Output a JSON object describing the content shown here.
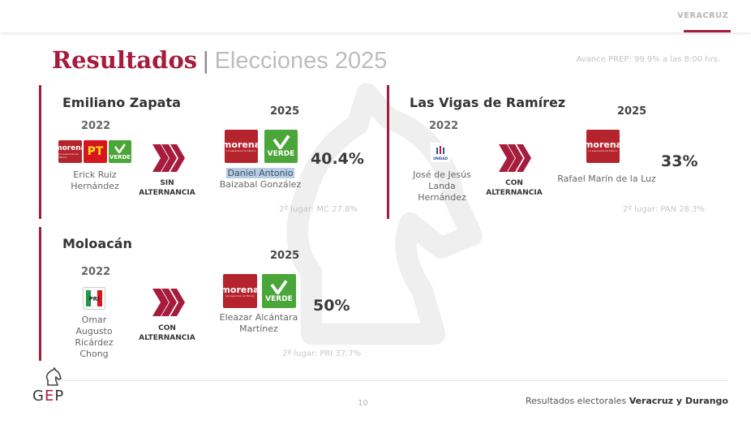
{
  "header": {
    "region": "VERACRUZ"
  },
  "title": {
    "main": "Resultados",
    "separator": "|",
    "sub": "Elecciones 2025"
  },
  "prep": "Avance PREP: 99.9% a las 8:00 hrs.",
  "cards": [
    {
      "municipality": "Emiliano Zapata",
      "year_prev": "2022",
      "prev_logos": [
        "morena",
        "PT",
        "VERDE"
      ],
      "prev_candidate": "Erick Ruiz Hernández",
      "alternation": "SIN ALTERNANCIA",
      "year_new": "2025",
      "new_logos": [
        "morena",
        "VERDE"
      ],
      "new_candidate_line1": "Daniel Antonio",
      "new_candidate_line2": "Baizabal González",
      "percent": "40.4%",
      "second_place": "2º lugar: MC 27.8%"
    },
    {
      "municipality": "Las Vigas de Ramírez",
      "year_prev": "2022",
      "prev_logos": [
        "UNIDAD"
      ],
      "prev_candidate": "José de Jesús Landa Hernández",
      "alternation": "CON ALTERNANCIA",
      "year_new": "2025",
      "new_logos": [
        "morena"
      ],
      "new_candidate": "Rafael Marín de la Luz",
      "percent": "33%",
      "second_place": "2º lugar: PAN 28.3%"
    },
    {
      "municipality": "Moloacán",
      "year_prev": "2022",
      "prev_logos": [
        "PRI"
      ],
      "prev_candidate": "Omar Augusto Ricárdez Chong",
      "alternation": "CON ALTERNANCIA",
      "year_new": "2025",
      "new_logos": [
        "morena",
        "VERDE"
      ],
      "new_candidate": "Eleazar Alcántara Martínez",
      "percent": "50%",
      "second_place": "2º lugar: PRI 37.7%"
    }
  ],
  "logo_text": {
    "morena": "morena",
    "morena_sub": "La esperanza de México",
    "pt": "PT",
    "verde": "VERDE",
    "pri": "PRI",
    "unidad": "UNIDAD"
  },
  "footer": {
    "brand_g": "G",
    "brand_e": "E",
    "brand_p": "P",
    "page": "10",
    "caption": "Resultados electorales",
    "caption_bold": "Veracruz y Durango"
  },
  "colors": {
    "accent": "#a61c3c",
    "morena": "#b5242c",
    "verde": "#4aa638",
    "pt": "#d8141d"
  },
  "icons": [
    "chevrons-right-icon",
    "knight-logo-icon",
    "party-logo"
  ]
}
